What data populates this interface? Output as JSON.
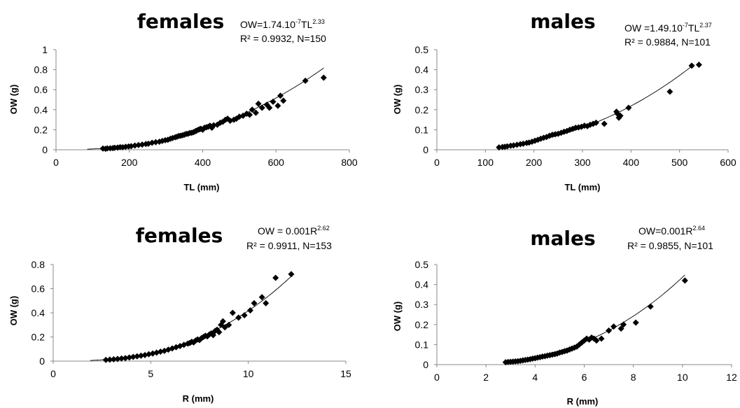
{
  "chart_data": [
    {
      "type": "scatter",
      "title": "females",
      "equation": {
        "prefix": "OW=1.74.10",
        "exp1": "-7",
        "mid": "TL",
        "exp2": "2.33",
        "stats": "R² = 0.9932, N=150"
      },
      "xlabel": "TL (mm)",
      "ylabel": "OW (g)",
      "xlim": [
        0,
        800
      ],
      "ylim": [
        0,
        1
      ],
      "xticks": [
        "0",
        "200",
        "400",
        "600",
        "800"
      ],
      "yticks": [
        "0",
        "0.2",
        "0.4",
        "0.6",
        "0.8",
        "1"
      ],
      "fit": {
        "a": 1.74e-07,
        "b": 2.33,
        "x_range": [
          85,
          730
        ]
      },
      "points": [
        [
          128,
          0.012
        ],
        [
          135,
          0.01
        ],
        [
          140,
          0.014
        ],
        [
          148,
          0.015
        ],
        [
          155,
          0.017
        ],
        [
          160,
          0.02
        ],
        [
          168,
          0.022
        ],
        [
          175,
          0.026
        ],
        [
          182,
          0.025
        ],
        [
          190,
          0.03
        ],
        [
          198,
          0.033
        ],
        [
          205,
          0.036
        ],
        [
          215,
          0.042
        ],
        [
          225,
          0.047
        ],
        [
          235,
          0.052
        ],
        [
          245,
          0.058
        ],
        [
          252,
          0.06
        ],
        [
          262,
          0.07
        ],
        [
          272,
          0.076
        ],
        [
          282,
          0.08
        ],
        [
          290,
          0.088
        ],
        [
          298,
          0.095
        ],
        [
          305,
          0.1
        ],
        [
          312,
          0.11
        ],
        [
          318,
          0.117
        ],
        [
          325,
          0.125
        ],
        [
          330,
          0.13
        ],
        [
          335,
          0.138
        ],
        [
          340,
          0.14
        ],
        [
          345,
          0.145
        ],
        [
          350,
          0.15
        ],
        [
          355,
          0.158
        ],
        [
          360,
          0.16
        ],
        [
          365,
          0.168
        ],
        [
          370,
          0.17
        ],
        [
          375,
          0.176
        ],
        [
          380,
          0.185
        ],
        [
          383,
          0.19
        ],
        [
          388,
          0.2
        ],
        [
          392,
          0.205
        ],
        [
          395,
          0.21
        ],
        [
          400,
          0.2
        ],
        [
          405,
          0.22
        ],
        [
          410,
          0.225
        ],
        [
          415,
          0.23
        ],
        [
          420,
          0.24
        ],
        [
          425,
          0.22
        ],
        [
          430,
          0.245
        ],
        [
          440,
          0.25
        ],
        [
          448,
          0.27
        ],
        [
          455,
          0.28
        ],
        [
          462,
          0.3
        ],
        [
          468,
          0.31
        ],
        [
          475,
          0.29
        ],
        [
          485,
          0.3
        ],
        [
          492,
          0.31
        ],
        [
          500,
          0.33
        ],
        [
          510,
          0.34
        ],
        [
          520,
          0.36
        ],
        [
          528,
          0.35
        ],
        [
          535,
          0.4
        ],
        [
          545,
          0.37
        ],
        [
          552,
          0.46
        ],
        [
          562,
          0.42
        ],
        [
          575,
          0.45
        ],
        [
          582,
          0.42
        ],
        [
          592,
          0.48
        ],
        [
          605,
          0.44
        ],
        [
          612,
          0.54
        ],
        [
          620,
          0.49
        ],
        [
          680,
          0.69
        ],
        [
          730,
          0.72
        ]
      ]
    },
    {
      "type": "scatter",
      "title": "males",
      "equation": {
        "prefix": "OW =1.49.10",
        "exp1": "-7",
        "mid": "TL",
        "exp2": "2.37",
        "stats": "R² = 0.9884, N=101"
      },
      "xlabel": "TL (mm)",
      "ylabel": "OW (g)",
      "xlim": [
        0,
        600
      ],
      "ylim": [
        0,
        0.5
      ],
      "xticks": [
        "0",
        "100",
        "200",
        "300",
        "400",
        "500",
        "600"
      ],
      "yticks": [
        "0",
        "0.1",
        "0.2",
        "0.3",
        "0.4",
        "0.5"
      ],
      "fit": {
        "a": 1.49e-07,
        "b": 2.37,
        "x_range": [
          125,
          530
        ]
      },
      "points": [
        [
          128,
          0.012
        ],
        [
          135,
          0.014
        ],
        [
          140,
          0.015
        ],
        [
          145,
          0.017
        ],
        [
          152,
          0.02
        ],
        [
          158,
          0.022
        ],
        [
          165,
          0.025
        ],
        [
          172,
          0.028
        ],
        [
          178,
          0.03
        ],
        [
          185,
          0.034
        ],
        [
          190,
          0.036
        ],
        [
          196,
          0.04
        ],
        [
          202,
          0.045
        ],
        [
          208,
          0.05
        ],
        [
          214,
          0.055
        ],
        [
          220,
          0.06
        ],
        [
          226,
          0.064
        ],
        [
          232,
          0.07
        ],
        [
          238,
          0.075
        ],
        [
          244,
          0.078
        ],
        [
          250,
          0.08
        ],
        [
          256,
          0.085
        ],
        [
          262,
          0.09
        ],
        [
          268,
          0.094
        ],
        [
          274,
          0.1
        ],
        [
          280,
          0.105
        ],
        [
          286,
          0.11
        ],
        [
          292,
          0.112
        ],
        [
          298,
          0.115
        ],
        [
          304,
          0.12
        ],
        [
          310,
          0.118
        ],
        [
          316,
          0.125
        ],
        [
          322,
          0.13
        ],
        [
          328,
          0.135
        ],
        [
          345,
          0.13
        ],
        [
          370,
          0.19
        ],
        [
          372,
          0.18
        ],
        [
          375,
          0.16
        ],
        [
          378,
          0.17
        ],
        [
          395,
          0.21
        ],
        [
          480,
          0.29
        ],
        [
          525,
          0.42
        ],
        [
          540,
          0.425
        ]
      ]
    },
    {
      "type": "scatter",
      "title": "females",
      "equation": {
        "prefix": "OW = 0.001R",
        "exp1": "2.62",
        "stats": "R² = 0.9911, N=153"
      },
      "xlabel": "R (mm)",
      "ylabel": "OW (g)",
      "xlim": [
        0,
        15
      ],
      "ylim": [
        0,
        0.8
      ],
      "xticks": [
        "0",
        "5",
        "10",
        "15"
      ],
      "yticks": [
        "0",
        "0.2",
        "0.4",
        "0.6",
        "0.8"
      ],
      "fit": {
        "a": 0.001,
        "b": 2.62,
        "x_range": [
          1.9,
          12.2
        ]
      },
      "points": [
        [
          2.7,
          0.01
        ],
        [
          2.9,
          0.012
        ],
        [
          3.1,
          0.015
        ],
        [
          3.3,
          0.018
        ],
        [
          3.5,
          0.022
        ],
        [
          3.7,
          0.025
        ],
        [
          3.9,
          0.03
        ],
        [
          4.1,
          0.035
        ],
        [
          4.3,
          0.04
        ],
        [
          4.5,
          0.045
        ],
        [
          4.7,
          0.05
        ],
        [
          4.9,
          0.057
        ],
        [
          5.1,
          0.063
        ],
        [
          5.3,
          0.07
        ],
        [
          5.5,
          0.078
        ],
        [
          5.7,
          0.085
        ],
        [
          5.9,
          0.095
        ],
        [
          6.1,
          0.105
        ],
        [
          6.3,
          0.115
        ],
        [
          6.5,
          0.125
        ],
        [
          6.7,
          0.135
        ],
        [
          6.9,
          0.145
        ],
        [
          7.0,
          0.15
        ],
        [
          7.1,
          0.16
        ],
        [
          7.2,
          0.155
        ],
        [
          7.3,
          0.17
        ],
        [
          7.4,
          0.18
        ],
        [
          7.5,
          0.175
        ],
        [
          7.6,
          0.19
        ],
        [
          7.7,
          0.2
        ],
        [
          7.8,
          0.21
        ],
        [
          7.9,
          0.205
        ],
        [
          8.0,
          0.22
        ],
        [
          8.1,
          0.23
        ],
        [
          8.2,
          0.215
        ],
        [
          8.3,
          0.25
        ],
        [
          8.4,
          0.26
        ],
        [
          8.5,
          0.24
        ],
        [
          8.6,
          0.3
        ],
        [
          8.7,
          0.33
        ],
        [
          8.8,
          0.28
        ],
        [
          9.0,
          0.3
        ],
        [
          9.2,
          0.4
        ],
        [
          9.5,
          0.36
        ],
        [
          9.8,
          0.38
        ],
        [
          10.1,
          0.42
        ],
        [
          10.3,
          0.48
        ],
        [
          10.7,
          0.53
        ],
        [
          10.9,
          0.48
        ],
        [
          11.4,
          0.69
        ],
        [
          12.2,
          0.72
        ]
      ]
    },
    {
      "type": "scatter",
      "title": "males",
      "equation": {
        "prefix": "OW=0.001R",
        "exp1": "2.64",
        "stats": "R² = 0.9855, N=101"
      },
      "xlabel": "R (mm)",
      "ylabel": "OW (g)",
      "xlim": [
        0,
        12
      ],
      "ylim": [
        0,
        0.5
      ],
      "xticks": [
        "0",
        "2",
        "4",
        "6",
        "8",
        "10",
        "12"
      ],
      "yticks": [
        "0",
        "0.1",
        "0.2",
        "0.3",
        "0.4",
        "0.5"
      ],
      "fit": {
        "a": 0.001,
        "b": 2.64,
        "x_range": [
          2.8,
          10.1
        ]
      },
      "points": [
        [
          2.8,
          0.012
        ],
        [
          2.9,
          0.013
        ],
        [
          3.0,
          0.014
        ],
        [
          3.1,
          0.015
        ],
        [
          3.2,
          0.016
        ],
        [
          3.3,
          0.017
        ],
        [
          3.4,
          0.019
        ],
        [
          3.5,
          0.021
        ],
        [
          3.6,
          0.023
        ],
        [
          3.7,
          0.025
        ],
        [
          3.8,
          0.027
        ],
        [
          3.9,
          0.03
        ],
        [
          4.0,
          0.032
        ],
        [
          4.1,
          0.035
        ],
        [
          4.2,
          0.037
        ],
        [
          4.3,
          0.04
        ],
        [
          4.4,
          0.042
        ],
        [
          4.5,
          0.045
        ],
        [
          4.6,
          0.047
        ],
        [
          4.7,
          0.05
        ],
        [
          4.8,
          0.052
        ],
        [
          4.9,
          0.055
        ],
        [
          5.0,
          0.06
        ],
        [
          5.1,
          0.063
        ],
        [
          5.2,
          0.067
        ],
        [
          5.3,
          0.07
        ],
        [
          5.4,
          0.075
        ],
        [
          5.5,
          0.08
        ],
        [
          5.6,
          0.085
        ],
        [
          5.7,
          0.09
        ],
        [
          5.8,
          0.1
        ],
        [
          5.9,
          0.11
        ],
        [
          6.0,
          0.12
        ],
        [
          6.1,
          0.13
        ],
        [
          6.2,
          0.125
        ],
        [
          6.3,
          0.135
        ],
        [
          6.4,
          0.13
        ],
        [
          6.5,
          0.12
        ],
        [
          6.7,
          0.13
        ],
        [
          7.0,
          0.17
        ],
        [
          7.2,
          0.19
        ],
        [
          7.5,
          0.18
        ],
        [
          7.6,
          0.2
        ],
        [
          8.1,
          0.21
        ],
        [
          8.7,
          0.29
        ],
        [
          10.1,
          0.42
        ]
      ]
    }
  ]
}
